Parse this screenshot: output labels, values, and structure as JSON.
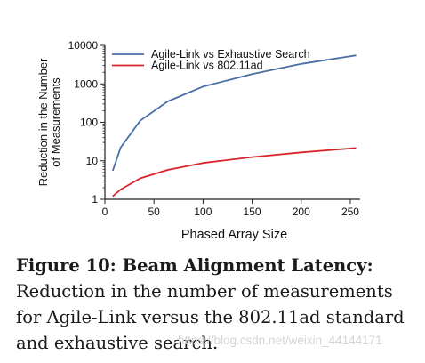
{
  "chart_data": {
    "type": "line",
    "xlabel": "Phased Array Size",
    "ylabel": "Reduction in the Number of Measurements",
    "ylabel_lines": [
      "Reduction in the Number",
      "of Measurements"
    ],
    "xlim": [
      0,
      260
    ],
    "ylim": [
      1,
      10000
    ],
    "yscale": "log",
    "xticks": [
      0,
      50,
      100,
      150,
      200,
      250
    ],
    "yticks": [
      1,
      10,
      100,
      1000,
      10000
    ],
    "ytick_labels": [
      "1",
      "10",
      "100",
      "1000",
      "10000"
    ],
    "legend_position": "top-left",
    "grid": false,
    "series": [
      {
        "name": "Agile-Link vs Exhaustive Search",
        "color": "#4a6fa5",
        "x": [
          8,
          16,
          36,
          64,
          100,
          150,
          200,
          256
        ],
        "y": [
          5.5,
          22,
          110,
          350,
          850,
          1800,
          3300,
          5500
        ]
      },
      {
        "name": "Agile-Link vs 802.11ad",
        "color": "#d9242b",
        "x": [
          8,
          16,
          36,
          64,
          100,
          150,
          200,
          256
        ],
        "y": [
          1.2,
          1.8,
          3.5,
          5.8,
          8.8,
          12.5,
          16.5,
          21.5
        ]
      }
    ]
  },
  "caption": {
    "label": "Figure 10: Beam Alignment Latency:",
    "text": " Reduction in the number of measurements for Agile-Link versus the 802.11ad standard and exhaustive search."
  },
  "watermark": "https://blog.csdn.net/weixin_44144171"
}
